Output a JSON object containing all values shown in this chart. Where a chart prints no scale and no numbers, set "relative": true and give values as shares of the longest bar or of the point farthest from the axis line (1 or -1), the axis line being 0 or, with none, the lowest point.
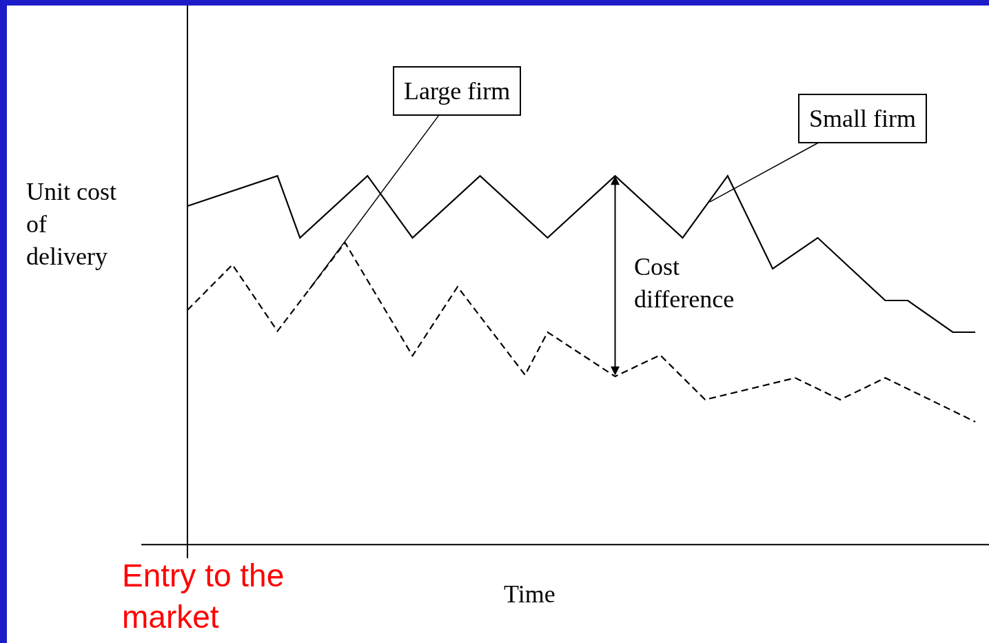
{
  "chart_data": {
    "type": "line",
    "relative": true,
    "xlabel": "Time",
    "ylabel": "Unit cost\nof\ndelivery",
    "legend": false,
    "marker": "none",
    "categories": [
      null,
      null,
      null,
      null,
      null,
      null,
      null,
      null,
      null,
      null,
      null,
      null,
      null,
      null,
      null,
      null,
      null,
      null,
      null,
      null,
      null,
      null,
      null,
      null,
      null,
      null,
      null,
      null,
      null,
      null,
      null,
      null,
      null,
      null,
      null,
      null
    ],
    "series": [
      {
        "name": "Small firm",
        "color": "#000000",
        "line_style": "solid",
        "values": [
          0.918,
          null,
          null,
          null,
          1,
          0.832,
          null,
          null,
          1,
          null,
          0.832,
          null,
          null,
          1,
          null,
          null,
          0.832,
          null,
          null,
          1,
          null,
          null,
          0.832,
          null,
          1,
          null,
          0.748,
          null,
          0.832,
          null,
          null,
          0.662,
          0.662,
          null,
          0.576,
          0.576
        ]
      },
      {
        "name": "Large firm",
        "color": "#000000",
        "line_style": "dashed",
        "values": [
          0.636,
          null,
          0.759,
          null,
          0.579,
          null,
          null,
          0.819,
          null,
          null,
          0.512,
          null,
          0.699,
          null,
          null,
          0.46,
          0.576,
          null,
          null,
          0.456,
          null,
          0.514,
          null,
          0.393,
          null,
          null,
          null,
          0.452,
          null,
          0.393,
          null,
          0.452,
          null,
          null,
          null,
          0.333
        ]
      }
    ],
    "annotations": [
      "Cost difference",
      "Entry to the market"
    ]
  }
}
